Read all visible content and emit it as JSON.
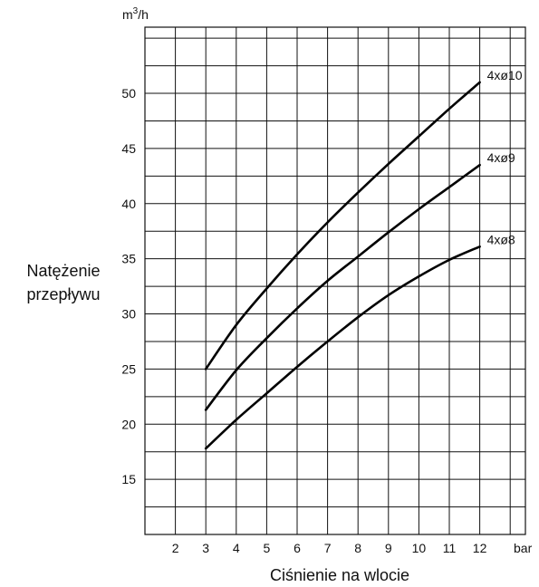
{
  "chart_data": {
    "type": "line",
    "title": "",
    "ylabel": "Natężenie przepływu",
    "yunit": "m3/h",
    "xlabel": "Ciśnienie na wlocie",
    "xunit": "bar",
    "xlim": [
      1,
      13.5
    ],
    "ylim": [
      10,
      56
    ],
    "x_ticks": [
      2,
      3,
      4,
      5,
      6,
      7,
      8,
      9,
      10,
      11,
      12
    ],
    "y_ticks": [
      15,
      20,
      25,
      30,
      35,
      40,
      45,
      50
    ],
    "grid": true,
    "series": [
      {
        "name": "4xø10",
        "x": [
          3,
          4,
          5,
          6,
          7,
          8,
          9,
          10,
          11,
          12
        ],
        "y": [
          25.0,
          29.0,
          32.3,
          35.4,
          38.3,
          41.0,
          43.6,
          46.1,
          48.6,
          51.0
        ]
      },
      {
        "name": "4xø9",
        "x": [
          3,
          4,
          5,
          6,
          7,
          8,
          9,
          10,
          11,
          12
        ],
        "y": [
          21.3,
          24.9,
          27.8,
          30.5,
          33.0,
          35.2,
          37.4,
          39.5,
          41.5,
          43.5
        ]
      },
      {
        "name": "4xø8",
        "x": [
          3,
          4,
          5,
          6,
          7,
          8,
          9,
          10,
          11,
          12
        ],
        "y": [
          17.8,
          20.4,
          22.8,
          25.2,
          27.5,
          29.7,
          31.7,
          33.4,
          34.9,
          36.1
        ]
      }
    ]
  }
}
